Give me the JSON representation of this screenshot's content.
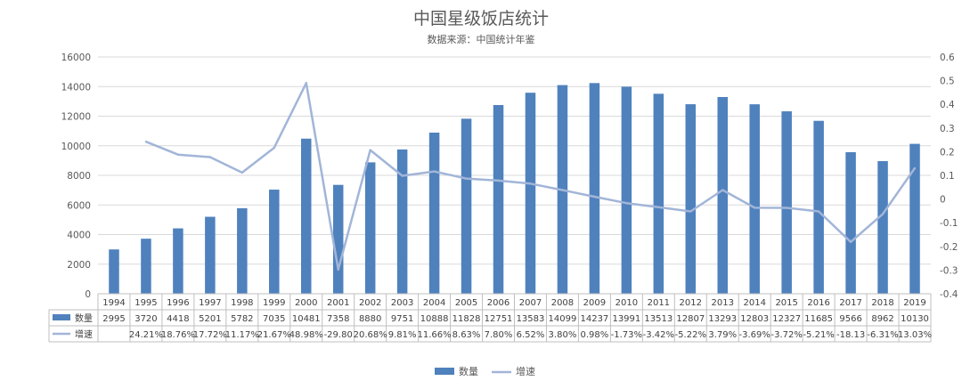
{
  "title": "中国星级饭店统计",
  "subtitle": "数据来源：中国统计年鉴",
  "chart_data": {
    "type": "bar",
    "categories": [
      "1994",
      "1995",
      "1996",
      "1997",
      "1998",
      "1999",
      "2000",
      "2001",
      "2002",
      "2003",
      "2004",
      "2005",
      "2006",
      "2007",
      "2008",
      "2009",
      "2010",
      "2011",
      "2012",
      "2013",
      "2014",
      "2015",
      "2016",
      "2017",
      "2018",
      "2019"
    ],
    "series": [
      {
        "name": "数量",
        "type": "bar",
        "axis": "left",
        "color": "#4f81bd",
        "values": [
          2995,
          3720,
          4418,
          5201,
          5782,
          7035,
          10481,
          7358,
          8880,
          9751,
          10888,
          11828,
          12751,
          13583,
          14099,
          14237,
          13991,
          13513,
          12807,
          13293,
          12803,
          12327,
          11685,
          9566,
          8962,
          10130
        ]
      },
      {
        "name": "增速",
        "type": "line",
        "axis": "right",
        "color": "#a2b5d8",
        "values": [
          null,
          0.2421,
          0.1876,
          0.1772,
          0.1117,
          0.2167,
          0.4898,
          -0.298,
          0.2068,
          0.0981,
          0.1166,
          0.0863,
          0.078,
          0.0652,
          0.038,
          0.0098,
          -0.0173,
          -0.0342,
          -0.0522,
          0.0379,
          -0.0369,
          -0.0372,
          -0.0521,
          -0.1813,
          -0.0631,
          0.1303
        ]
      }
    ],
    "table_labels": {
      "数量": [
        "2995",
        "3720",
        "4418",
        "5201",
        "5782",
        "7035",
        "10481",
        "7358",
        "8880",
        "9751",
        "10888",
        "11828",
        "12751",
        "13583",
        "14099",
        "14237",
        "13991",
        "13513",
        "12807",
        "13293",
        "12803",
        "12327",
        "11685",
        "9566",
        "8962",
        "10130"
      ],
      "增速": [
        "",
        "24.21%",
        "18.76%",
        "17.72%",
        "11.17%",
        "21.67%",
        "48.98%",
        "-29.80",
        "20.68%",
        "9.81%",
        "11.66%",
        "8.63%",
        "7.80%",
        "6.52%",
        "3.80%",
        "0.98%",
        "-1.73%",
        "-3.42%",
        "-5.22%",
        "3.79%",
        "-3.69%",
        "-3.72%",
        "-5.21%",
        "-18.13",
        "-6.31%",
        "13.03%"
      ]
    },
    "y_left": {
      "min": 0,
      "max": 16000,
      "ticks": [
        "0",
        "2000",
        "4000",
        "6000",
        "8000",
        "10000",
        "12000",
        "14000",
        "16000"
      ]
    },
    "y_right": {
      "min": -0.4,
      "max": 0.6,
      "ticks": [
        "-0.4",
        "-0.3",
        "-0.2",
        "-0.1",
        "0",
        "0.1",
        "0.2",
        "0.3",
        "0.4",
        "0.5",
        "0.6"
      ]
    },
    "grid": true,
    "legend_position": "bottom"
  }
}
